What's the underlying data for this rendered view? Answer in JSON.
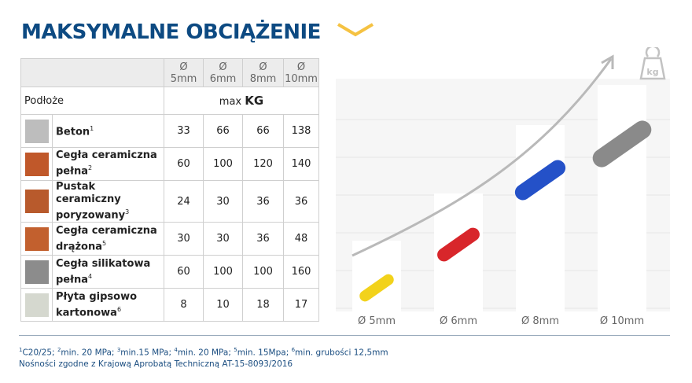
{
  "title": "MAKSYMALNE OBCIĄŻENIE",
  "table": {
    "columns": [
      "Ø 5mm",
      "Ø 6mm",
      "Ø 8mm",
      "Ø 10mm"
    ],
    "col_symbol": "Ø",
    "col_sizes": [
      "5mm",
      "6mm",
      "8mm",
      "10mm"
    ],
    "row_header": "Podłoże",
    "unit_prefix": "max",
    "unit": "KG",
    "rows": [
      {
        "name": "Beton",
        "note": "1",
        "values": [
          "33",
          "66",
          "66",
          "138"
        ],
        "swatch": "#bdbdbd"
      },
      {
        "name": "Cegła ceramiczna pełna",
        "name1": "Cegła ceramiczna",
        "name2": "pełna",
        "note": "2",
        "values": [
          "60",
          "100",
          "120",
          "140"
        ],
        "swatch": "#c0582a"
      },
      {
        "name": "Pustak ceramiczny poryzowany",
        "name1": "Pustak ceramiczny",
        "name2": "poryzowany",
        "note": "3",
        "values": [
          "24",
          "30",
          "36",
          "36"
        ],
        "swatch": "#b85a2c"
      },
      {
        "name": "Cegła ceramiczna drążona",
        "name1": "Cegła ceramiczna",
        "name2": "drążona",
        "note": "5",
        "values": [
          "30",
          "30",
          "36",
          "48"
        ],
        "swatch": "#c2602e"
      },
      {
        "name": "Cegła silikatowa pełna",
        "name1": "Cegła silikatowa",
        "name2": "pełna",
        "note": "4",
        "values": [
          "60",
          "100",
          "100",
          "160"
        ],
        "swatch": "#8c8c8c"
      },
      {
        "name": "Płyta gipsowo kartonowa",
        "name1": "Płyta gipsowo",
        "name2": "kartonowa",
        "note": "6",
        "values": [
          "8",
          "10",
          "18",
          "17"
        ],
        "swatch": "#d5d8cf"
      }
    ]
  },
  "illustration": {
    "labels": [
      "Ø 5mm",
      "Ø 6mm",
      "Ø 8mm",
      "Ø 10mm"
    ],
    "plug_colors": [
      "#f2d21b",
      "#d8262b",
      "#2451c8",
      "#8a8a8a"
    ],
    "weight_icon_text": "kg"
  },
  "footnotes": {
    "items": [
      [
        "1",
        "C20/25; "
      ],
      [
        "2",
        "min. 20 MPa; "
      ],
      [
        "3",
        "min.15 MPa; "
      ],
      [
        "4",
        "min. 20 MPa; "
      ],
      [
        "5",
        "min. 15Mpa; "
      ],
      [
        "6",
        "min. grubości 12,5mm"
      ]
    ],
    "approval": "Nośności zgodne z Krajową Aprobatą Techniczną AT-15-8093/2016"
  },
  "colors": {
    "title": "#0d4a82",
    "accent": "#f5c242"
  }
}
